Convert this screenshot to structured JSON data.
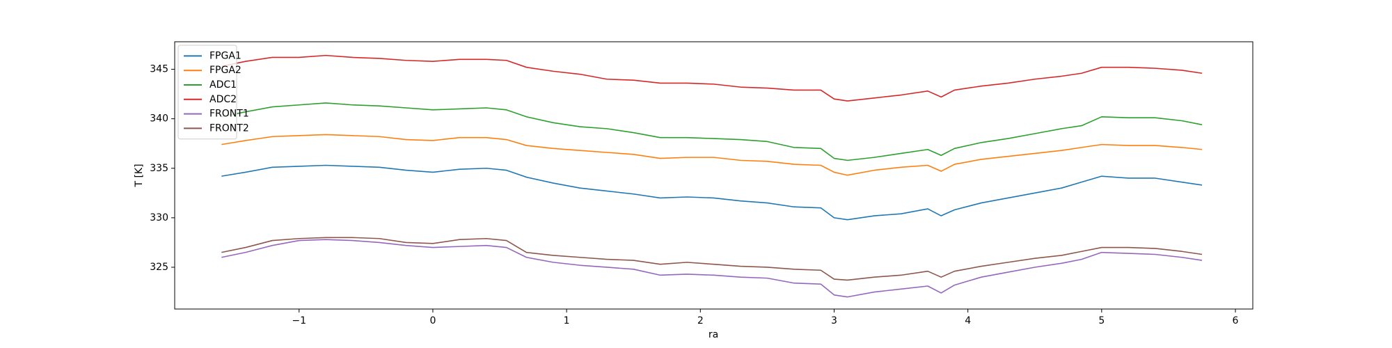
{
  "chart_data": {
    "type": "line",
    "x_label": "ra",
    "y_label": "T [K]",
    "x": [
      -1.58,
      -1.4,
      -1.2,
      -1.0,
      -0.8,
      -0.6,
      -0.4,
      -0.2,
      0,
      0.2,
      0.4,
      0.55,
      0.7,
      0.9,
      1.1,
      1.3,
      1.5,
      1.7,
      1.9,
      2.1,
      2.3,
      2.5,
      2.7,
      2.9,
      3.0,
      3.1,
      3.3,
      3.5,
      3.7,
      3.8,
      3.9,
      4.1,
      4.3,
      4.5,
      4.7,
      4.85,
      5.0,
      5.2,
      5.4,
      5.6,
      5.75
    ],
    "series": [
      {
        "name": "FPGA1",
        "color": "#1f77b4",
        "values": [
          334.2,
          334.6,
          335.1,
          335.2,
          335.3,
          335.2,
          335.1,
          334.8,
          334.6,
          334.9,
          335.0,
          334.8,
          334.1,
          333.5,
          333.0,
          332.7,
          332.4,
          332.0,
          332.1,
          332.0,
          331.7,
          331.5,
          331.1,
          331.0,
          330.0,
          329.8,
          330.2,
          330.4,
          330.9,
          330.2,
          330.8,
          331.5,
          332.0,
          332.5,
          333.0,
          333.6,
          334.2,
          334.0,
          334.0,
          333.6,
          333.3
        ]
      },
      {
        "name": "FPGA2",
        "color": "#ff7f0e",
        "values": [
          337.4,
          337.8,
          338.2,
          338.3,
          338.4,
          338.3,
          338.2,
          337.9,
          337.8,
          338.1,
          338.1,
          337.9,
          337.3,
          337.0,
          336.8,
          336.6,
          336.4,
          336.0,
          336.1,
          336.1,
          335.8,
          335.7,
          335.4,
          335.3,
          334.6,
          334.3,
          334.8,
          335.1,
          335.3,
          334.7,
          335.4,
          335.9,
          336.2,
          336.5,
          336.8,
          337.1,
          337.4,
          337.3,
          337.3,
          337.1,
          336.9
        ]
      },
      {
        "name": "ADC1",
        "color": "#2ca02c",
        "values": [
          340.2,
          340.7,
          341.2,
          341.4,
          341.6,
          341.4,
          341.3,
          341.1,
          340.9,
          341.0,
          341.1,
          340.9,
          340.2,
          339.6,
          339.2,
          339.0,
          338.6,
          338.1,
          338.1,
          338.0,
          337.9,
          337.7,
          337.1,
          337.0,
          336.0,
          335.8,
          336.1,
          336.5,
          336.9,
          336.3,
          337.0,
          337.6,
          338.0,
          338.5,
          339.0,
          339.3,
          340.2,
          340.1,
          340.1,
          339.8,
          339.4
        ]
      },
      {
        "name": "ADC2",
        "color": "#d62728",
        "values": [
          345.3,
          345.8,
          346.2,
          346.2,
          346.4,
          346.2,
          346.1,
          345.9,
          345.8,
          346.0,
          346.0,
          345.9,
          345.2,
          344.8,
          344.5,
          344.0,
          343.9,
          343.6,
          343.6,
          343.5,
          343.2,
          343.1,
          342.9,
          342.9,
          342.0,
          341.8,
          342.1,
          342.4,
          342.8,
          342.2,
          342.9,
          343.3,
          343.6,
          344.0,
          344.3,
          344.6,
          345.2,
          345.2,
          345.1,
          344.9,
          344.6
        ]
      },
      {
        "name": "FRONT1",
        "color": "#9467bd",
        "values": [
          326.0,
          326.5,
          327.2,
          327.7,
          327.8,
          327.7,
          327.5,
          327.2,
          327.0,
          327.1,
          327.2,
          327.0,
          326.0,
          325.5,
          325.2,
          325.0,
          324.8,
          324.2,
          324.3,
          324.2,
          324.0,
          323.9,
          323.4,
          323.3,
          322.2,
          322.0,
          322.5,
          322.8,
          323.1,
          322.4,
          323.2,
          324.0,
          324.5,
          325.0,
          325.4,
          325.8,
          326.5,
          326.4,
          326.3,
          326.0,
          325.7
        ]
      },
      {
        "name": "FRONT2",
        "color": "#8c564b",
        "values": [
          326.5,
          327.0,
          327.7,
          327.9,
          328.0,
          328.0,
          327.9,
          327.5,
          327.4,
          327.8,
          327.9,
          327.7,
          326.5,
          326.2,
          326.0,
          325.8,
          325.7,
          325.3,
          325.5,
          325.3,
          325.1,
          325.0,
          324.8,
          324.7,
          323.8,
          323.7,
          324.0,
          324.2,
          324.6,
          324.0,
          324.6,
          325.1,
          325.5,
          325.9,
          326.2,
          326.6,
          327.0,
          327.0,
          326.9,
          326.6,
          326.3
        ]
      }
    ],
    "xlim": [
      -1.93,
      6.13
    ],
    "ylim": [
      320.78,
      347.78
    ],
    "xticks": [
      {
        "value": -1,
        "label": "−1"
      },
      0,
      1,
      2,
      3,
      4,
      5,
      6
    ],
    "yticks": [
      325,
      330,
      335,
      340,
      345
    ],
    "legend": "upper left"
  }
}
